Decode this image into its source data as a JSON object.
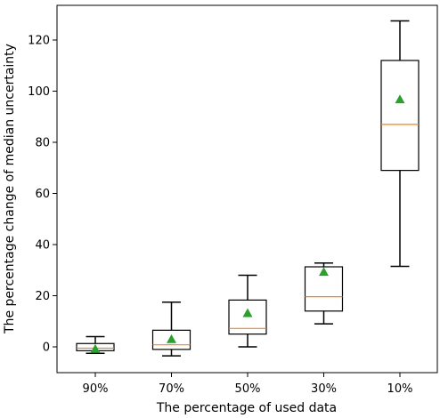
{
  "chart_data": {
    "type": "box",
    "title": "",
    "xlabel": "The percentage of used data",
    "ylabel": "The percentage change of median uncertainty",
    "ylim": [
      -10,
      134
    ],
    "yticks": [
      0,
      20,
      40,
      60,
      80,
      100,
      120
    ],
    "categories": [
      "90%",
      "70%",
      "50%",
      "30%",
      "10%"
    ],
    "boxes": [
      {
        "category": "90%",
        "whisker_low": -2.5,
        "q1": -1.5,
        "median": -0.5,
        "q3": 1.3,
        "whisker_high": 4,
        "mean": -0.8
      },
      {
        "category": "70%",
        "whisker_low": -3.5,
        "q1": -1,
        "median": 0.8,
        "q3": 6.5,
        "whisker_high": 17.5,
        "mean": 3
      },
      {
        "category": "50%",
        "whisker_low": 0,
        "q1": 5,
        "median": 7.2,
        "q3": 18.3,
        "whisker_high": 28,
        "mean": 13.2
      },
      {
        "category": "30%",
        "whisker_low": 9,
        "q1": 14,
        "median": 19.6,
        "q3": 31.3,
        "whisker_high": 32.8,
        "mean": 29.3
      },
      {
        "category": "10%",
        "whisker_low": 31.5,
        "q1": 69,
        "median": 87,
        "q3": 112,
        "whisker_high": 127.5,
        "mean": 96.8
      }
    ],
    "colors": {
      "box": "#000000",
      "median": "#ff7f0e",
      "mean": "#2ca02c"
    },
    "grid": false,
    "legend": "none"
  }
}
